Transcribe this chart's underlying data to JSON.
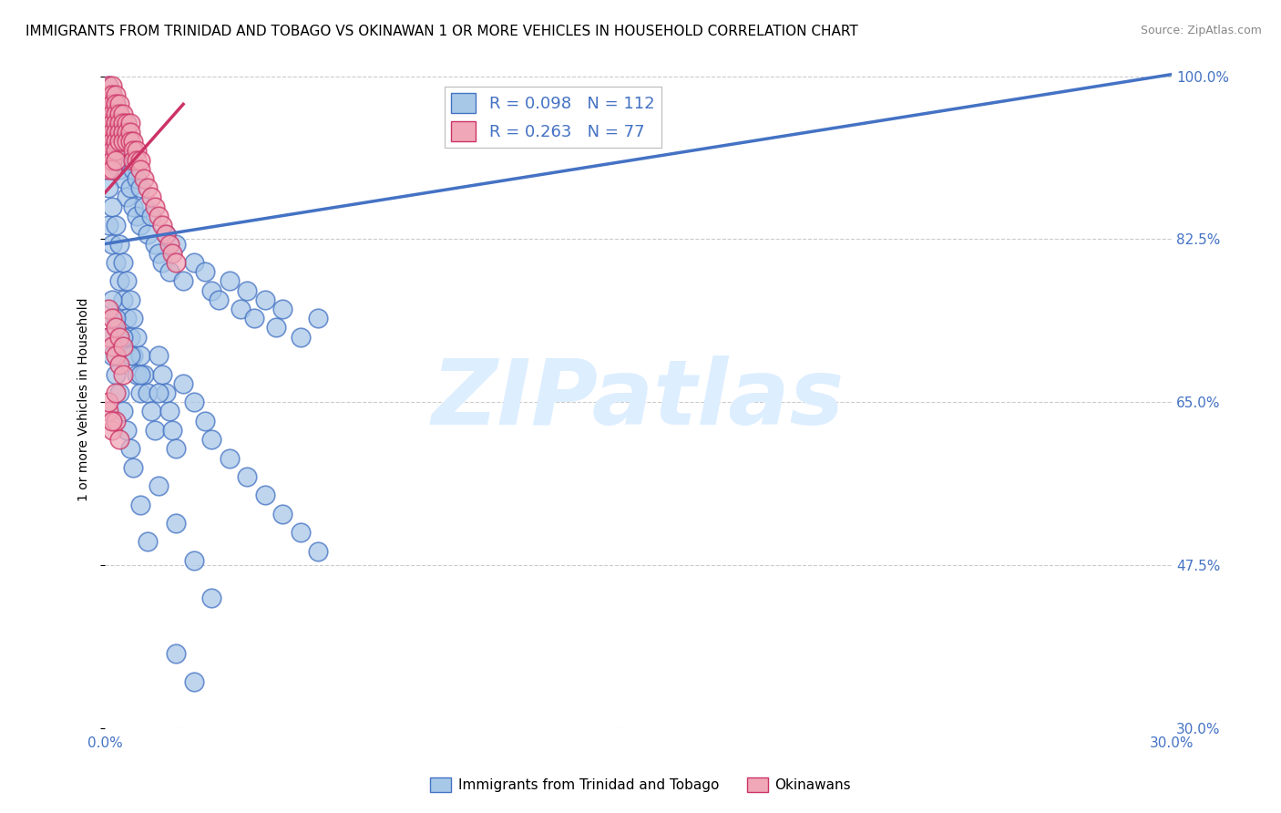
{
  "title": "IMMIGRANTS FROM TRINIDAD AND TOBAGO VS OKINAWAN 1 OR MORE VEHICLES IN HOUSEHOLD CORRELATION CHART",
  "source": "Source: ZipAtlas.com",
  "ylabel": "1 or more Vehicles in Household",
  "xlim": [
    0.0,
    0.3
  ],
  "ylim": [
    0.3,
    1.005
  ],
  "xticks": [
    0.0,
    0.05,
    0.1,
    0.15,
    0.2,
    0.25,
    0.3
  ],
  "yticks": [
    0.3,
    0.475,
    0.65,
    0.825,
    1.0
  ],
  "ytick_labels": [
    "30.0%",
    "47.5%",
    "65.0%",
    "82.5%",
    "100.0%"
  ],
  "xtick_labels": [
    "0.0%",
    "",
    "",
    "",
    "",
    "",
    "30.0%"
  ],
  "blue_color": "#a8c8e8",
  "pink_color": "#f0a8b8",
  "line_blue": "#4472c4",
  "line_pink": "#cc3366",
  "watermark": "ZIPatlas",
  "watermark_color": "#ddeeff",
  "title_fontsize": 11,
  "axis_label_fontsize": 10,
  "tick_fontsize": 11,
  "blue_scatter_x": [
    0.001,
    0.001,
    0.001,
    0.001,
    0.002,
    0.002,
    0.002,
    0.002,
    0.003,
    0.003,
    0.003,
    0.004,
    0.004,
    0.004,
    0.005,
    0.005,
    0.006,
    0.006,
    0.006,
    0.007,
    0.007,
    0.008,
    0.008,
    0.009,
    0.009,
    0.01,
    0.01,
    0.011,
    0.012,
    0.013,
    0.014,
    0.015,
    0.016,
    0.017,
    0.018,
    0.02,
    0.022,
    0.025,
    0.028,
    0.03,
    0.032,
    0.035,
    0.038,
    0.04,
    0.042,
    0.045,
    0.048,
    0.05,
    0.055,
    0.06,
    0.001,
    0.001,
    0.002,
    0.002,
    0.003,
    0.003,
    0.004,
    0.004,
    0.005,
    0.005,
    0.006,
    0.006,
    0.007,
    0.007,
    0.008,
    0.008,
    0.009,
    0.009,
    0.01,
    0.01,
    0.011,
    0.012,
    0.013,
    0.014,
    0.015,
    0.016,
    0.017,
    0.018,
    0.019,
    0.02,
    0.022,
    0.025,
    0.028,
    0.03,
    0.035,
    0.04,
    0.045,
    0.05,
    0.055,
    0.06,
    0.001,
    0.002,
    0.003,
    0.004,
    0.005,
    0.006,
    0.007,
    0.008,
    0.01,
    0.012,
    0.015,
    0.02,
    0.025,
    0.03,
    0.002,
    0.003,
    0.005,
    0.007,
    0.01,
    0.015,
    0.02,
    0.025
  ],
  "blue_scatter_y": [
    0.99,
    0.97,
    0.95,
    0.93,
    0.98,
    0.96,
    0.94,
    0.92,
    0.97,
    0.95,
    0.91,
    0.96,
    0.94,
    0.9,
    0.93,
    0.89,
    0.95,
    0.91,
    0.87,
    0.92,
    0.88,
    0.9,
    0.86,
    0.89,
    0.85,
    0.88,
    0.84,
    0.86,
    0.83,
    0.85,
    0.82,
    0.81,
    0.8,
    0.83,
    0.79,
    0.82,
    0.78,
    0.8,
    0.79,
    0.77,
    0.76,
    0.78,
    0.75,
    0.77,
    0.74,
    0.76,
    0.73,
    0.75,
    0.72,
    0.74,
    0.88,
    0.84,
    0.86,
    0.82,
    0.84,
    0.8,
    0.82,
    0.78,
    0.8,
    0.76,
    0.78,
    0.74,
    0.76,
    0.72,
    0.74,
    0.7,
    0.72,
    0.68,
    0.7,
    0.66,
    0.68,
    0.66,
    0.64,
    0.62,
    0.7,
    0.68,
    0.66,
    0.64,
    0.62,
    0.6,
    0.67,
    0.65,
    0.63,
    0.61,
    0.59,
    0.57,
    0.55,
    0.53,
    0.51,
    0.49,
    0.72,
    0.7,
    0.68,
    0.66,
    0.64,
    0.62,
    0.6,
    0.58,
    0.54,
    0.5,
    0.56,
    0.52,
    0.48,
    0.44,
    0.76,
    0.74,
    0.72,
    0.7,
    0.68,
    0.66,
    0.38,
    0.35
  ],
  "pink_scatter_x": [
    0.001,
    0.001,
    0.001,
    0.001,
    0.001,
    0.001,
    0.001,
    0.001,
    0.001,
    0.001,
    0.002,
    0.002,
    0.002,
    0.002,
    0.002,
    0.002,
    0.002,
    0.002,
    0.002,
    0.002,
    0.003,
    0.003,
    0.003,
    0.003,
    0.003,
    0.003,
    0.003,
    0.003,
    0.004,
    0.004,
    0.004,
    0.004,
    0.004,
    0.005,
    0.005,
    0.005,
    0.005,
    0.006,
    0.006,
    0.006,
    0.007,
    0.007,
    0.007,
    0.008,
    0.008,
    0.008,
    0.009,
    0.009,
    0.01,
    0.01,
    0.011,
    0.012,
    0.013,
    0.014,
    0.015,
    0.016,
    0.017,
    0.018,
    0.019,
    0.02,
    0.001,
    0.001,
    0.002,
    0.002,
    0.003,
    0.003,
    0.004,
    0.004,
    0.005,
    0.005,
    0.001,
    0.002,
    0.003,
    0.004,
    0.001,
    0.002,
    0.003
  ],
  "pink_scatter_y": [
    0.99,
    0.98,
    0.97,
    0.96,
    0.95,
    0.94,
    0.93,
    0.92,
    0.91,
    0.9,
    0.99,
    0.98,
    0.97,
    0.96,
    0.95,
    0.94,
    0.93,
    0.92,
    0.91,
    0.9,
    0.98,
    0.97,
    0.96,
    0.95,
    0.94,
    0.93,
    0.92,
    0.91,
    0.97,
    0.96,
    0.95,
    0.94,
    0.93,
    0.96,
    0.95,
    0.94,
    0.93,
    0.95,
    0.94,
    0.93,
    0.95,
    0.94,
    0.93,
    0.93,
    0.92,
    0.91,
    0.92,
    0.91,
    0.91,
    0.9,
    0.89,
    0.88,
    0.87,
    0.86,
    0.85,
    0.84,
    0.83,
    0.82,
    0.81,
    0.8,
    0.75,
    0.72,
    0.74,
    0.71,
    0.73,
    0.7,
    0.72,
    0.69,
    0.71,
    0.68,
    0.64,
    0.62,
    0.63,
    0.61,
    0.65,
    0.63,
    0.66
  ],
  "blue_trend_x": [
    0.0,
    0.3
  ],
  "blue_trend_y": [
    0.82,
    1.002
  ],
  "pink_trend_x": [
    0.0,
    0.022
  ],
  "pink_trend_y": [
    0.875,
    0.97
  ]
}
